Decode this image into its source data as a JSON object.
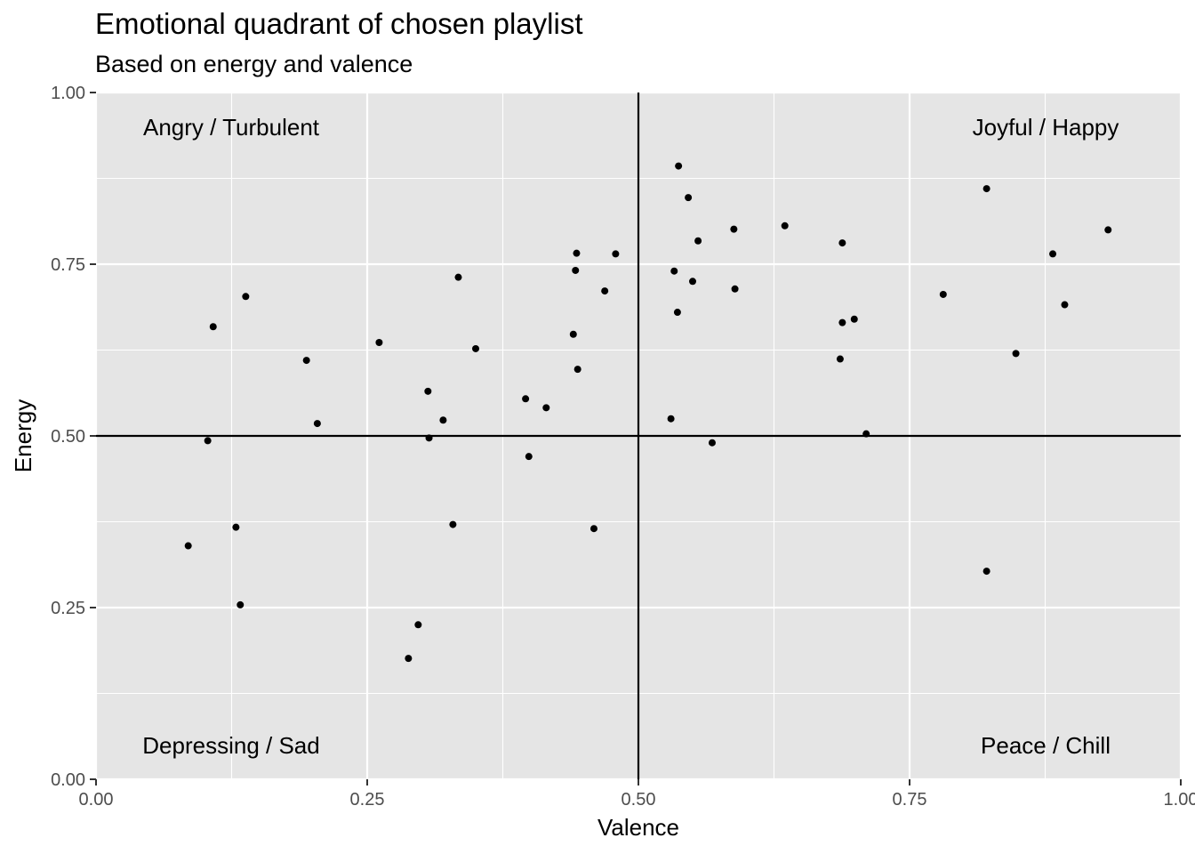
{
  "chart_data": {
    "type": "scatter",
    "title": "Emotional quadrant of chosen playlist",
    "subtitle": "Based on energy and valence",
    "xlabel": "Valence",
    "ylabel": "Energy",
    "xlim": [
      0,
      1
    ],
    "ylim": [
      0,
      1
    ],
    "x_ticks": [
      "0.00",
      "0.25",
      "0.50",
      "0.75",
      "1.00"
    ],
    "y_ticks": [
      "0.00",
      "0.25",
      "0.50",
      "0.75",
      "1.00"
    ],
    "reference_lines": {
      "x": 0.5,
      "y": 0.5
    },
    "quadrant_labels": [
      {
        "text": "Angry / Turbulent",
        "quadrant": "top-left"
      },
      {
        "text": "Joyful / Happy",
        "quadrant": "top-right"
      },
      {
        "text": "Depressing / Sad",
        "quadrant": "bottom-left"
      },
      {
        "text": "Peace / Chill",
        "quadrant": "bottom-right"
      }
    ],
    "grid": true,
    "panel_background": "#e5e5e5",
    "grid_color": "#ffffff",
    "point_color": "#000000",
    "points": [
      [
        0.537,
        0.893
      ],
      [
        0.546,
        0.847
      ],
      [
        0.821,
        0.86
      ],
      [
        0.635,
        0.806
      ],
      [
        0.588,
        0.801
      ],
      [
        0.933,
        0.8
      ],
      [
        0.555,
        0.784
      ],
      [
        0.688,
        0.781
      ],
      [
        0.443,
        0.766
      ],
      [
        0.479,
        0.765
      ],
      [
        0.882,
        0.765
      ],
      [
        0.442,
        0.741
      ],
      [
        0.533,
        0.74
      ],
      [
        0.334,
        0.731
      ],
      [
        0.55,
        0.725
      ],
      [
        0.589,
        0.714
      ],
      [
        0.469,
        0.711
      ],
      [
        0.781,
        0.706
      ],
      [
        0.138,
        0.703
      ],
      [
        0.893,
        0.691
      ],
      [
        0.536,
        0.68
      ],
      [
        0.699,
        0.67
      ],
      [
        0.688,
        0.665
      ],
      [
        0.108,
        0.659
      ],
      [
        0.44,
        0.648
      ],
      [
        0.261,
        0.636
      ],
      [
        0.35,
        0.627
      ],
      [
        0.848,
        0.62
      ],
      [
        0.686,
        0.612
      ],
      [
        0.194,
        0.61
      ],
      [
        0.444,
        0.597
      ],
      [
        0.306,
        0.565
      ],
      [
        0.396,
        0.554
      ],
      [
        0.415,
        0.541
      ],
      [
        0.53,
        0.525
      ],
      [
        0.32,
        0.523
      ],
      [
        0.204,
        0.518
      ],
      [
        0.71,
        0.503
      ],
      [
        0.307,
        0.497
      ],
      [
        0.103,
        0.493
      ],
      [
        0.568,
        0.49
      ],
      [
        0.399,
        0.47
      ],
      [
        0.329,
        0.371
      ],
      [
        0.129,
        0.367
      ],
      [
        0.459,
        0.365
      ],
      [
        0.085,
        0.34
      ],
      [
        0.821,
        0.303
      ],
      [
        0.133,
        0.254
      ],
      [
        0.297,
        0.225
      ],
      [
        0.288,
        0.176
      ]
    ]
  }
}
